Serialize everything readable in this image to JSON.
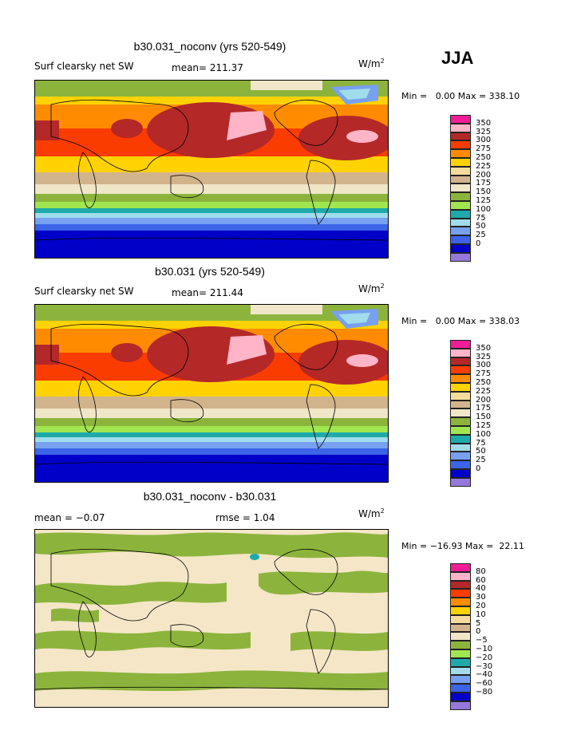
{
  "season": "JJA",
  "palette_abs": [
    "#F01E96",
    "#FFB4C8",
    "#B42828",
    "#FA3C00",
    "#FF8C00",
    "#FFD200",
    "#F5DC9B",
    "#D2B48C",
    "#F0E6C8",
    "#8CB43C",
    "#A0E650",
    "#1EAAAA",
    "#A0DCEB",
    "#78A0F0",
    "#3C64E6",
    "#0000C8",
    "#9678DC"
  ],
  "panels": [
    {
      "title": "b30.031_noconv (yrs 520-549)",
      "variable": "Surf clearsky net SW",
      "mean": "mean= 211.37",
      "units": "W/m",
      "units_exp": "2",
      "minmax": "Min =   0.00 Max = 338.10",
      "levels": [
        "350",
        "325",
        "300",
        "275",
        "250",
        "225",
        "200",
        "175",
        "150",
        "125",
        "100",
        "75",
        "50",
        "25",
        "0"
      ]
    },
    {
      "title": "b30.031 (yrs 520-549)",
      "variable": "Surf clearsky net SW",
      "mean": "mean= 211.44",
      "units": "W/m",
      "units_exp": "2",
      "minmax": "Min =   0.00 Max = 338.03",
      "levels": [
        "350",
        "325",
        "300",
        "275",
        "250",
        "225",
        "200",
        "175",
        "150",
        "125",
        "100",
        "75",
        "50",
        "25",
        "0"
      ]
    },
    {
      "title": "b30.031_noconv - b30.031",
      "mean": "mean =   −0.07",
      "rmse": "rmse =    1.04",
      "units": "W/m",
      "units_exp": "2",
      "minmax": "Min = −16.93 Max =  22.11",
      "levels": [
        "80",
        "60",
        "40",
        "30",
        "20",
        "10",
        "5",
        "0",
        "−5",
        "−10",
        "−20",
        "−30",
        "−40",
        "−60",
        "−80"
      ]
    }
  ]
}
